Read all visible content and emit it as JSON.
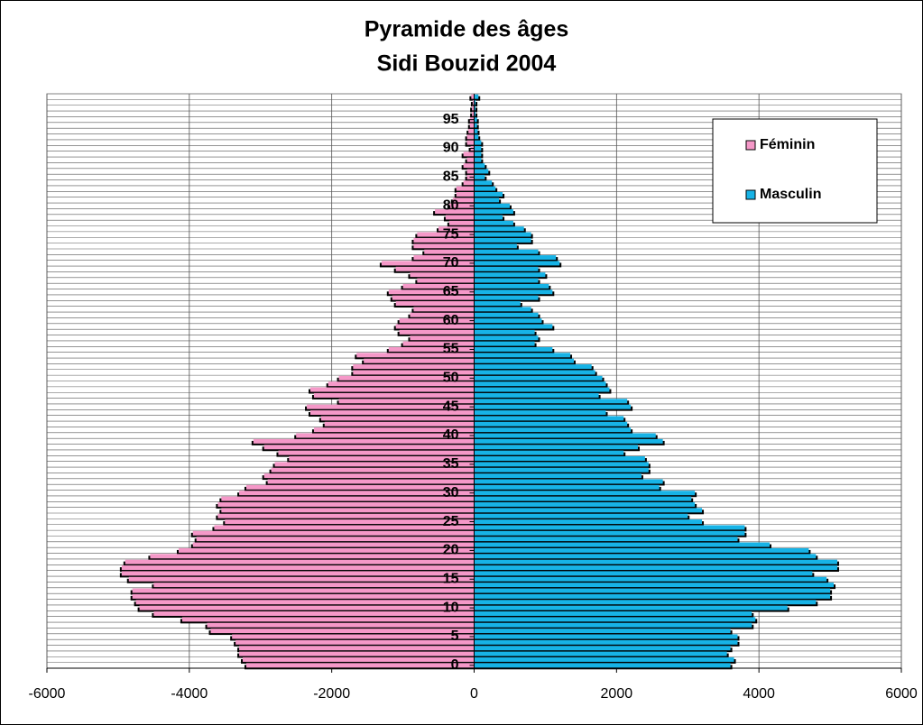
{
  "chart_data": {
    "type": "pyramid",
    "title": "Pyramide des âges",
    "subtitle": "Sidi Bouzid 2004",
    "categories": [
      0,
      null,
      null,
      null,
      null,
      5,
      null,
      null,
      null,
      null,
      10,
      null,
      null,
      null,
      null,
      15,
      null,
      null,
      null,
      null,
      20,
      null,
      null,
      null,
      null,
      25,
      null,
      null,
      null,
      null,
      30,
      null,
      null,
      null,
      null,
      35,
      null,
      null,
      null,
      null,
      40,
      null,
      null,
      null,
      null,
      45,
      null,
      null,
      null,
      null,
      50,
      null,
      null,
      null,
      null,
      55,
      null,
      null,
      null,
      null,
      60,
      null,
      null,
      null,
      null,
      65,
      null,
      null,
      null,
      null,
      70,
      null,
      null,
      null,
      null,
      75,
      null,
      null,
      null,
      null,
      80,
      null,
      null,
      null,
      null,
      85,
      null,
      null,
      null,
      null,
      90,
      null,
      null,
      null,
      null,
      95,
      null,
      null,
      null,
      null
    ],
    "series": [
      {
        "name": "Féminin",
        "color": "#f598c8",
        "values": [
          -3200,
          -3250,
          -3300,
          -3300,
          -3350,
          -3400,
          -3700,
          -3750,
          -4100,
          -4500,
          -4700,
          -4750,
          -4800,
          -4800,
          -4500,
          -4850,
          -4950,
          -4950,
          -4900,
          -4550,
          -4150,
          -3950,
          -3900,
          -3950,
          -3650,
          -3500,
          -3600,
          -3550,
          -3600,
          -3550,
          -3300,
          -3200,
          -2900,
          -2950,
          -2850,
          -2800,
          -2600,
          -2750,
          -2950,
          -3100,
          -2500,
          -2250,
          -2100,
          -2150,
          -2300,
          -2350,
          -1900,
          -2250,
          -2300,
          -2050,
          -1900,
          -1700,
          -1700,
          -1550,
          -1650,
          -1200,
          -1000,
          -900,
          -1050,
          -1100,
          -1050,
          -900,
          -850,
          -1100,
          -1150,
          -1200,
          -1000,
          -800,
          -900,
          -1100,
          -1300,
          -850,
          -700,
          -850,
          -850,
          -800,
          -500,
          -350,
          -400,
          -550,
          -350,
          -300,
          -250,
          -250,
          -150,
          -100,
          -100,
          -150,
          -100,
          -150,
          -50,
          -100,
          -100,
          -80,
          -60,
          -60,
          -30,
          -30,
          -20,
          -40
        ]
      },
      {
        "name": "Masculin",
        "color": "#17b3e6",
        "values": [
          3600,
          3650,
          3550,
          3600,
          3700,
          3700,
          3600,
          3900,
          3950,
          3900,
          4400,
          4800,
          5000,
          5000,
          5050,
          4950,
          4750,
          5100,
          5100,
          4800,
          4700,
          4150,
          3700,
          3800,
          3800,
          3200,
          3000,
          3200,
          3100,
          3050,
          3100,
          2600,
          2650,
          2350,
          2450,
          2450,
          2400,
          2100,
          2300,
          2650,
          2550,
          2200,
          2150,
          2100,
          1850,
          2200,
          2150,
          1750,
          1900,
          1850,
          1800,
          1700,
          1650,
          1400,
          1350,
          1100,
          850,
          900,
          850,
          1100,
          950,
          900,
          800,
          650,
          900,
          1100,
          1050,
          900,
          1000,
          900,
          1200,
          1150,
          900,
          600,
          800,
          800,
          700,
          550,
          400,
          550,
          500,
          350,
          400,
          300,
          250,
          150,
          200,
          150,
          100,
          100,
          100,
          100,
          60,
          50,
          40,
          40,
          20,
          20,
          20,
          60
        ]
      }
    ],
    "xlim": [
      -6000,
      6000
    ],
    "xticks": [
      -6000,
      -4000,
      -2000,
      0,
      2000,
      4000,
      6000
    ],
    "grid": true,
    "legend": "top-right"
  }
}
